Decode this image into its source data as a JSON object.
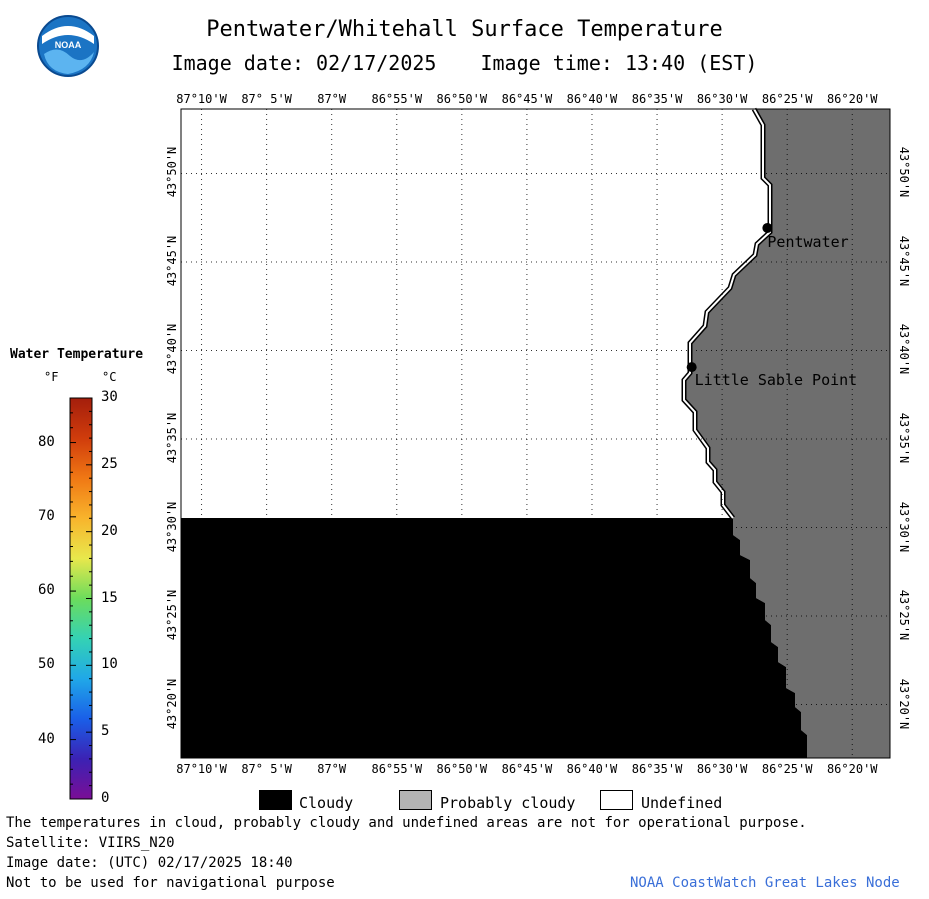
{
  "title": "Pentwater/Whitehall Surface Temperature",
  "image_date_line": "Image date: 02/17/2025",
  "image_time_line": "Image time: 13:40 (EST)",
  "logo_text": "NOAA",
  "longitude_labels": [
    "87°10'W",
    "87° 5'W",
    "87°W",
    "86°55'W",
    "86°50'W",
    "86°45'W",
    "86°40'W",
    "86°35'W",
    "86°30'W",
    "86°25'W",
    "86°20'W"
  ],
  "latitude_labels": [
    "43°50'N",
    "43°45'N",
    "43°40'N",
    "43°35'N",
    "43°30'N",
    "43°25'N",
    "43°20'N"
  ],
  "places": [
    {
      "name": "Pentwater",
      "lat": 43.782,
      "lon": -86.442
    },
    {
      "name": "Little Sable Point",
      "lat": 43.651,
      "lon": -86.539
    }
  ],
  "extent": {
    "lon_min": -87.193,
    "lon_max": -86.285,
    "lat_min": 43.283,
    "lat_max": 43.894
  },
  "legend": {
    "title": "Water Temperature",
    "unit_f": "°F",
    "unit_c": "°C",
    "f_ticks": [
      "40",
      "50",
      "60",
      "70",
      "80"
    ],
    "c_ticks": [
      "0",
      "5",
      "10",
      "15",
      "20",
      "25",
      "30"
    ],
    "colors": [
      "#7a0e96",
      "#3b22b4",
      "#1a5fe8",
      "#20a8e8",
      "#34d2b4",
      "#6cdc5c",
      "#e8e84c",
      "#f8b42c",
      "#f07814",
      "#d03c0c",
      "#a41e0c"
    ]
  },
  "key": {
    "cloudy": "Cloudy",
    "probably_cloudy": "Probably cloudy",
    "undefined": "Undefined",
    "cloudy_color": "#000000",
    "probably_cloudy_color": "#b4b4b4",
    "undefined_color": "#ffffff",
    "land_color": "#6e6e6e"
  },
  "footer": {
    "disclaimer": "The temperatures in cloud, probably cloudy and undefined areas are not for operational purpose.",
    "satellite": "Satellite: VIIRS_N20",
    "utc_date": "Image date: (UTC) 02/17/2025  18:40",
    "nav_warning": "Not to be used for navigational purpose",
    "credit": "NOAA CoastWatch Great Lakes Node"
  }
}
